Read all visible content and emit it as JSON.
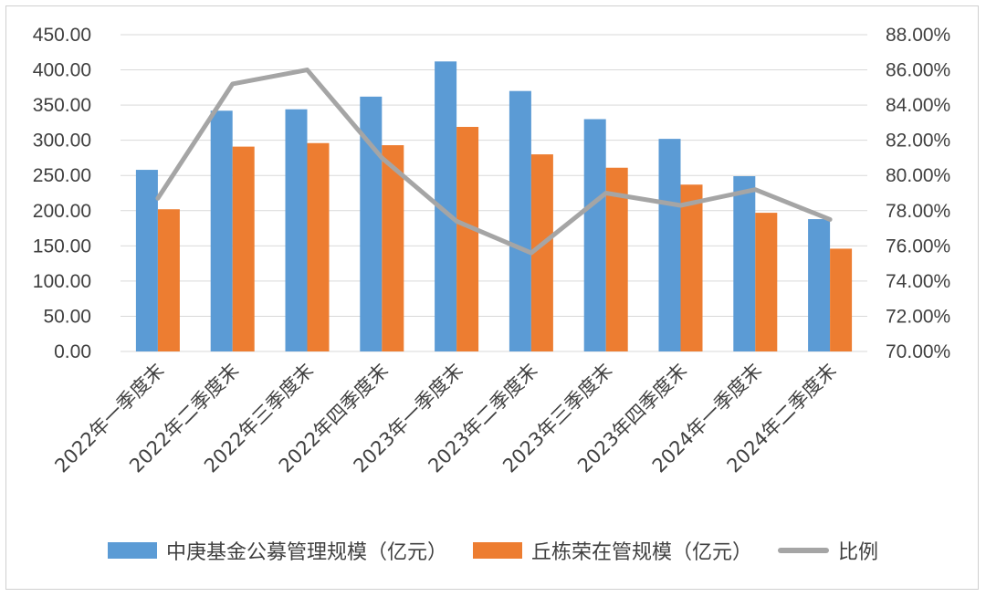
{
  "chart_data": {
    "type": "bar",
    "title": "",
    "xlabel": "",
    "ylabel": "",
    "categories": [
      "2022年一季度末",
      "2022年二季度末",
      "2022年三季度末",
      "2022年四季度末",
      "2023年一季度末",
      "2023年二季度末",
      "2023年三季度末",
      "2023年四季度末",
      "2024年一季度末",
      "2024年二季度末"
    ],
    "series": [
      {
        "name": "中庚基金公募管理规模（亿元）",
        "type": "bar",
        "axis": "left",
        "color": "#5B9BD5",
        "values": [
          258,
          342,
          344,
          362,
          412,
          370,
          330,
          302,
          249,
          188
        ]
      },
      {
        "name": "丘栋荣在管规模（亿元）",
        "type": "bar",
        "axis": "left",
        "color": "#ED7D31",
        "values": [
          202,
          291,
          296,
          293,
          319,
          280,
          261,
          237,
          197,
          146
        ]
      },
      {
        "name": "比例",
        "type": "line",
        "axis": "right",
        "color": "#A5A5A5",
        "values": [
          78.7,
          85.2,
          86.0,
          81.0,
          77.4,
          75.6,
          79.0,
          78.3,
          79.2,
          77.5
        ]
      }
    ],
    "ylim": [
      0,
      450
    ],
    "y_ticks": [
      "0.00",
      "50.00",
      "100.00",
      "150.00",
      "200.00",
      "250.00",
      "300.00",
      "350.00",
      "400.00",
      "450.00"
    ],
    "y2lim": [
      70,
      88
    ],
    "y2_ticks": [
      "70.00%",
      "72.00%",
      "74.00%",
      "76.00%",
      "78.00%",
      "80.00%",
      "82.00%",
      "84.00%",
      "86.00%",
      "88.00%"
    ],
    "grid": true,
    "grid_color": "#d9d9d9",
    "legend_position": "bottom"
  }
}
